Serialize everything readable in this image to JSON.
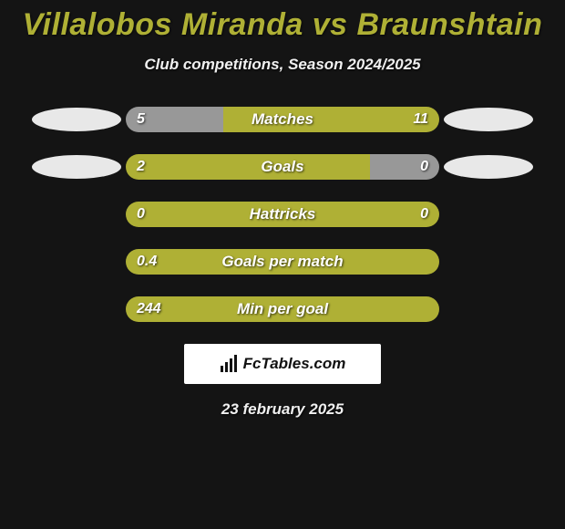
{
  "title": "Villalobos Miranda vs Braunshtain",
  "subtitle": "Club competitions, Season 2024/2025",
  "date": "23 february 2025",
  "attribution": "FcTables.com",
  "colors": {
    "background": "#141414",
    "accent": "#afb035",
    "bar_left_neutral": "#989898",
    "bar_empty": "#989898",
    "badge": "#e8e8e8",
    "text_light": "#ffffff"
  },
  "stats": [
    {
      "label": "Matches",
      "left_value": "5",
      "right_value": "11",
      "left_pct": 31,
      "right_pct": 69,
      "left_color": "#989898",
      "right_color": "#afb035",
      "show_badges": true
    },
    {
      "label": "Goals",
      "left_value": "2",
      "right_value": "0",
      "left_pct": 78,
      "right_pct": 22,
      "left_color": "#afb035",
      "right_color": "#989898",
      "show_badges": true
    },
    {
      "label": "Hattricks",
      "left_value": "0",
      "right_value": "0",
      "left_pct": 100,
      "right_pct": 0,
      "left_color": "#afb035",
      "right_color": "#989898",
      "show_badges": false
    },
    {
      "label": "Goals per match",
      "left_value": "0.4",
      "right_value": "",
      "left_pct": 100,
      "right_pct": 0,
      "left_color": "#afb035",
      "right_color": "#989898",
      "show_badges": false
    },
    {
      "label": "Min per goal",
      "left_value": "244",
      "right_value": "",
      "left_pct": 100,
      "right_pct": 0,
      "left_color": "#afb035",
      "right_color": "#989898",
      "show_badges": false
    }
  ]
}
